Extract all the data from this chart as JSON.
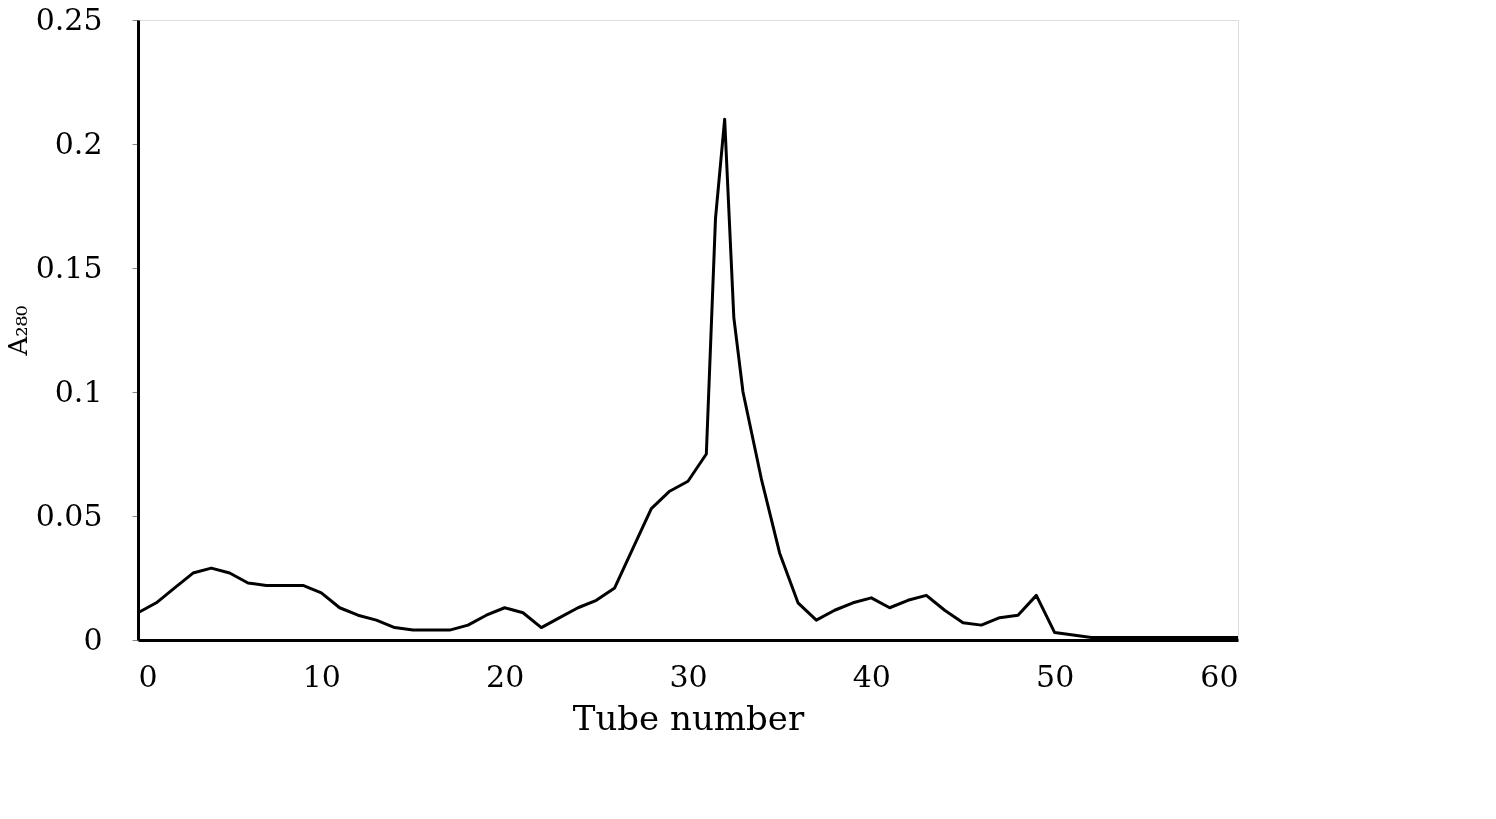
{
  "chart_data": {
    "type": "line",
    "xlabel": "Tube number",
    "ylabel": "A₂₈₀",
    "x": [
      0,
      1,
      2,
      3,
      4,
      5,
      6,
      7,
      8,
      9,
      10,
      11,
      12,
      13,
      14,
      15,
      16,
      17,
      18,
      19,
      20,
      21,
      22,
      23,
      24,
      25,
      26,
      27,
      28,
      29,
      30,
      31,
      31.5,
      32,
      32.5,
      33,
      34,
      35,
      36,
      37,
      38,
      39,
      40,
      41,
      42,
      43,
      44,
      45,
      46,
      47,
      48,
      49,
      50,
      52,
      54,
      56,
      58,
      60
    ],
    "series": [
      {
        "color": "#000000",
        "values": [
          0.011,
          0.015,
          0.021,
          0.027,
          0.029,
          0.027,
          0.023,
          0.022,
          0.022,
          0.022,
          0.019,
          0.013,
          0.01,
          0.008,
          0.005,
          0.004,
          0.004,
          0.004,
          0.006,
          0.01,
          0.013,
          0.011,
          0.005,
          0.009,
          0.013,
          0.016,
          0.021,
          0.037,
          0.053,
          0.06,
          0.064,
          0.075,
          0.17,
          0.21,
          0.13,
          0.1,
          0.065,
          0.035,
          0.015,
          0.008,
          0.012,
          0.015,
          0.017,
          0.013,
          0.016,
          0.018,
          0.012,
          0.007,
          0.006,
          0.009,
          0.01,
          0.018,
          0.003,
          0.001,
          0.001,
          0.001,
          0.001,
          0.001
        ]
      }
    ],
    "xlim": [
      0,
      60
    ],
    "xticks": [
      0,
      10,
      20,
      30,
      40,
      50,
      60
    ],
    "ylim": [
      0,
      0.25
    ],
    "yticks": [
      0,
      0.05,
      0.1,
      0.15,
      0.2,
      0.25
    ],
    "grid": false,
    "marker": "none",
    "line_style": "solid"
  }
}
